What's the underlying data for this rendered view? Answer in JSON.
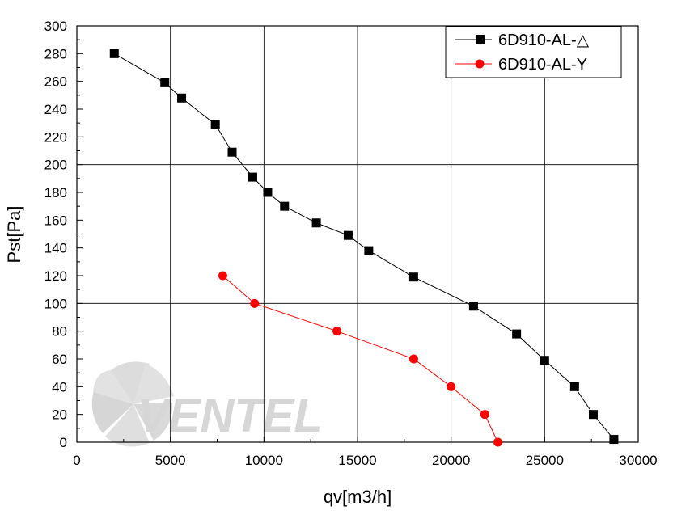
{
  "chart_data": {
    "type": "line",
    "title": "",
    "xlabel": "qv[m3/h]",
    "ylabel": "Pst[Pa]",
    "xlim": [
      0,
      30000
    ],
    "ylim": [
      0,
      300
    ],
    "x_ticks": [
      0,
      5000,
      10000,
      15000,
      20000,
      25000,
      30000
    ],
    "y_ticks": [
      0,
      20,
      40,
      60,
      80,
      100,
      120,
      140,
      160,
      180,
      200,
      220,
      240,
      260,
      280,
      300
    ],
    "grid": true,
    "legend_position": "top-right",
    "series": [
      {
        "name": "6D910-AL-△",
        "color": "#000000",
        "marker": "square",
        "x": [
          2000,
          4700,
          5600,
          7400,
          8300,
          9400,
          10200,
          11100,
          12800,
          14500,
          15600,
          18000,
          21200,
          23500,
          25000,
          26600,
          27600,
          28700
        ],
        "y": [
          280,
          259,
          248,
          229,
          209,
          191,
          180,
          170,
          158,
          149,
          138,
          119,
          98,
          78,
          59,
          40,
          20,
          2
        ]
      },
      {
        "name": "6D910-AL-Y",
        "color": "#ff0000",
        "marker": "circle",
        "x": [
          7800,
          9500,
          13900,
          18000,
          20000,
          21800,
          22500
        ],
        "y": [
          120,
          100,
          80,
          60,
          40,
          20,
          0
        ]
      }
    ]
  },
  "watermark": {
    "text": "VENTEL",
    "colors": {
      "gray": "#d0d0d0",
      "blue": "#c3d3ec"
    }
  }
}
